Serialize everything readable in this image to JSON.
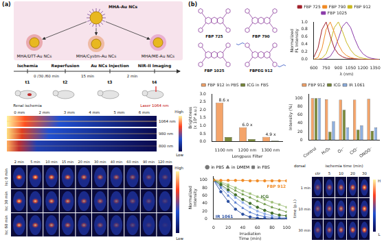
{
  "panel_a": {
    "label": "(a)",
    "schematic": {
      "center": "MHA-Au NCs",
      "products": [
        "MHA/DTT-Au NCs",
        "MHA/Cystm-Au NCs",
        "MHA/ME-Au NCs"
      ]
    },
    "timeline": {
      "steps": [
        "Ischemia",
        "Reperfusion",
        "Au NCs Injection",
        "NIR-II Imaging"
      ],
      "intervals": [
        "0 /30 /60 min",
        "15 min",
        "2 min"
      ],
      "times": [
        "t1",
        "t2",
        "t3",
        "t4"
      ],
      "notes": [
        "Renal ischemia",
        "Laser 1064 nm"
      ]
    },
    "depth_images": {
      "depths": [
        "0 mm",
        "2 mm",
        "3 mm",
        "4 mm",
        "5 mm",
        "6 mm"
      ],
      "wavelengths": [
        "1064 nm",
        "980 nm",
        "800 nm"
      ],
      "colorbar": [
        "High",
        "Low"
      ]
    },
    "time_images": {
      "times": [
        "2 min",
        "5 min",
        "10 min",
        "15 min",
        "20 min",
        "30 min",
        "40 min",
        "60 min",
        "90 min",
        "120 min"
      ],
      "rows": [
        "Isc 0 min",
        "Isc 30 min",
        "Isc 60 min"
      ],
      "colorbar": [
        "High",
        "Low"
      ]
    }
  },
  "panel_b": {
    "label": "(b)",
    "structures": [
      "FBP 725",
      "FBP 790",
      "FBP 1025",
      "FBPEG 912"
    ],
    "images": {
      "view": "dorsal",
      "column_title": "ischemia time (min)",
      "columns": [
        "ctr",
        "5",
        "10",
        "20",
        "30"
      ],
      "row_title": "time (p.i.)",
      "rows": [
        "1 min",
        "10 min",
        "30 min"
      ],
      "colorbar": [
        "H",
        "L"
      ]
    }
  },
  "chart_data": [
    {
      "type": "line",
      "x_label": "λ (nm)",
      "y_label": "Normalized FL Intensity",
      "x": [
        600,
        650,
        700,
        750,
        800,
        850,
        900,
        950,
        1000,
        1050,
        1100,
        1150,
        1200,
        1250,
        1300,
        1350,
        1400
      ],
      "series": [
        {
          "name": "FBP 725",
          "color": "#a0202a",
          "values": [
            0.06,
            0.3,
            0.8,
            1.0,
            0.62,
            0.3,
            0.14,
            0.07,
            0.03,
            0.02,
            0.01,
            0,
            0,
            0,
            0,
            0,
            0
          ]
        },
        {
          "name": "FBP 790",
          "color": "#f08a24",
          "values": [
            0,
            0.05,
            0.3,
            0.8,
            1.0,
            0.72,
            0.4,
            0.2,
            0.1,
            0.05,
            0.02,
            0.01,
            0,
            0,
            0,
            0,
            0
          ]
        },
        {
          "name": "FBP 912",
          "color": "#c9b820",
          "values": [
            0,
            0,
            0.03,
            0.15,
            0.45,
            0.85,
            1.0,
            0.75,
            0.45,
            0.25,
            0.12,
            0.06,
            0.03,
            0.01,
            0,
            0,
            0
          ]
        },
        {
          "name": "FBP 1025",
          "color": "#8a3aa8",
          "values": [
            0,
            0,
            0,
            0.02,
            0.08,
            0.25,
            0.55,
            0.88,
            1.0,
            0.85,
            0.55,
            0.3,
            0.15,
            0.07,
            0.03,
            0.01,
            0
          ]
        }
      ],
      "xlim": [
        600,
        1400
      ],
      "xticks": [
        600,
        750,
        900,
        1050,
        1200,
        1350
      ],
      "ylim": [
        0,
        1
      ],
      "yticks": [
        {
          "value": 0,
          "label": "0.0"
        },
        {
          "value": 0.2,
          "label": "0.2"
        },
        {
          "value": 0.4,
          "label": "0.4"
        },
        {
          "value": 0.6,
          "label": "0.6"
        },
        {
          "value": 0.8,
          "label": "0.8"
        },
        {
          "value": 1,
          "label": "1.0"
        }
      ],
      "marker": "none",
      "legend": "top",
      "grid": false
    },
    {
      "type": "bar",
      "x_label": "Longpass Filter",
      "y_label": "Brightness (x 10⁴ a.u.)",
      "categories": [
        "1100 nm",
        "1200 nm",
        "1300 nm"
      ],
      "series": [
        {
          "name": "FBP 912 in PBS",
          "color": "#f4a46a",
          "values": [
            2.45,
            0.9,
            0.3
          ]
        },
        {
          "name": "ICG in FBS",
          "color": "#7a8a3a",
          "values": [
            0.285,
            0.15,
            0.061
          ]
        }
      ],
      "annotations": [
        "8.6 x",
        "6.0 x",
        "4.9 x"
      ],
      "ylim": [
        0,
        3
      ],
      "yticks": [
        {
          "value": 0,
          "label": "0.0"
        },
        {
          "value": 0.5,
          "label": "0.5"
        },
        {
          "value": 1,
          "label": "1.0"
        },
        {
          "value": 1.5,
          "label": "1.5"
        },
        {
          "value": 2,
          "label": "2.0"
        },
        {
          "value": 2.5,
          "label": "2.5"
        },
        {
          "value": 3,
          "label": "3.0"
        }
      ],
      "legend": "top",
      "grid": false
    },
    {
      "type": "bar",
      "y_label": "Intensity (%)",
      "categories": [
        "Control",
        "H₂O₂",
        "O₂⁻",
        "ClO⁻",
        "ONOO⁻"
      ],
      "series": [
        {
          "name": "FBP 912",
          "color": "#f4a46a",
          "values": [
            100,
            97,
            96,
            96,
            98
          ]
        },
        {
          "name": "ICG",
          "color": "#7a8a3a",
          "values": [
            100,
            20,
            72,
            25,
            22
          ]
        },
        {
          "name": "IR 1061",
          "color": "#8fb0e0",
          "values": [
            100,
            45,
            30,
            35,
            30
          ]
        }
      ],
      "ylim": [
        0,
        110
      ],
      "yticks": [
        0,
        20,
        40,
        60,
        80,
        100
      ],
      "legend": "top",
      "grid": false
    },
    {
      "type": "line",
      "x_label": "Irradiation Time (min)",
      "y_label": "Normalized Intensity",
      "x": [
        0,
        10,
        20,
        30,
        40,
        50,
        60,
        70,
        80,
        90,
        100
      ],
      "series": [
        {
          "group": "FBP 912",
          "color": "#f08a24",
          "marker": "circle",
          "values": [
            100,
            99,
            99,
            99,
            99,
            98,
            98,
            98,
            98,
            98,
            98
          ]
        },
        {
          "group": "ICG",
          "medium": "in PBS",
          "color": "#3f6e2a",
          "marker": "circle",
          "values": [
            100,
            88,
            75,
            62,
            50,
            40,
            30,
            22,
            15,
            10,
            8
          ]
        },
        {
          "group": "ICG",
          "medium": "in DMEM",
          "color": "#6f9a4a",
          "marker": "triangle",
          "values": [
            100,
            92,
            83,
            73,
            63,
            55,
            46,
            38,
            30,
            24,
            18
          ]
        },
        {
          "group": "ICG",
          "medium": "in FBS",
          "color": "#9fc07a",
          "marker": "square",
          "values": [
            100,
            95,
            88,
            80,
            72,
            65,
            57,
            50,
            43,
            37,
            30
          ]
        },
        {
          "group": "IR 1061",
          "medium": "in PBS",
          "color": "#2a4fa0",
          "marker": "circle",
          "values": [
            100,
            70,
            45,
            25,
            12,
            5,
            2,
            1,
            0,
            0,
            0
          ]
        },
        {
          "group": "IR 1061",
          "medium": "in DMEM",
          "color": "#5a7fd0",
          "marker": "triangle",
          "values": [
            100,
            80,
            60,
            42,
            28,
            17,
            10,
            6,
            3,
            2,
            1
          ]
        },
        {
          "group": "IR 1061",
          "medium": "in FBS",
          "color": "#8aaae8",
          "marker": "square",
          "values": [
            100,
            85,
            70,
            55,
            42,
            30,
            20,
            13,
            8,
            5,
            3
          ]
        }
      ],
      "xlim": [
        0,
        100
      ],
      "xticks": [
        0,
        20,
        40,
        60,
        80,
        100
      ],
      "ylim": [
        0,
        110
      ],
      "yticks": [
        0,
        20,
        40,
        60,
        80,
        100
      ],
      "legend": "top",
      "grid": false
    }
  ]
}
